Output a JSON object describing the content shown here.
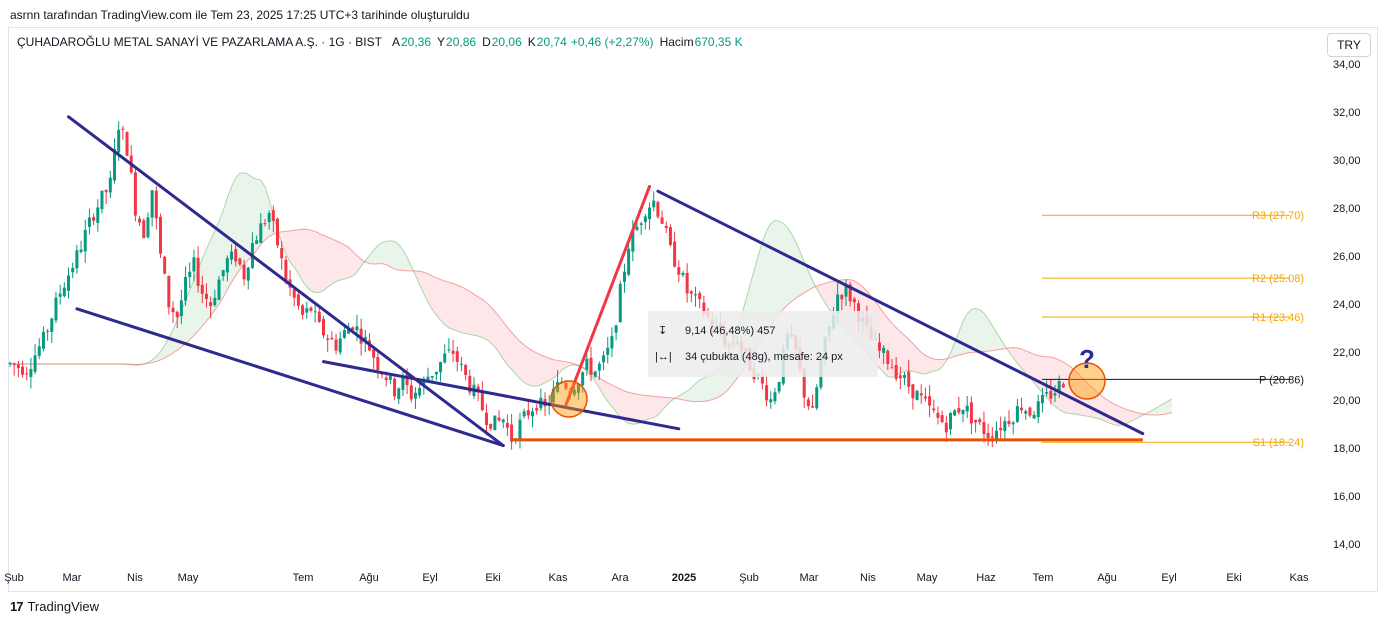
{
  "header": {
    "caption": "asrnn tarafından TradingView.com ile Tem 23, 2025 17:25 UTC+3 tarihinde oluşturuldu"
  },
  "legend": {
    "symbol": "ÇUHADAROĞLU METAL SANAYİ VE PAZARLAMA A.Ş. · 1G · BIST",
    "open_label": "A",
    "open": "20,36",
    "high_label": "Y",
    "high": "20,86",
    "low_label": "D",
    "low": "20,06",
    "close_label": "K",
    "close": "20,74",
    "change": "+0,46 (+2,27%)",
    "volume_label": "Hacim",
    "volume": "670,35 K",
    "value_color": "#089981"
  },
  "currency_button": "TRY",
  "footer": {
    "brand": "TradingView",
    "mark": "17"
  },
  "measure_tooltip": {
    "line1": "9,14 (46,48%) 457",
    "line2": "34 çubukta (48g), mesafe: 24 px"
  },
  "chart_data": {
    "type": "candlestick",
    "y_axis": {
      "min": 13,
      "max": 35,
      "ticks": [
        "34,00",
        "32,00",
        "30,00",
        "28,00",
        "26,00",
        "24,00",
        "22,00",
        "20,00",
        "18,00",
        "16,00",
        "14,00"
      ],
      "tick_values": [
        34,
        32,
        30,
        28,
        26,
        24,
        22,
        20,
        18,
        16,
        14
      ]
    },
    "x_axis": {
      "ticks": [
        "Şub",
        "Mar",
        "Nis",
        "May",
        "Tem",
        "Ağu",
        "Eyl",
        "Eki",
        "Kas",
        "Ara",
        "2025",
        "Şub",
        "Mar",
        "Nis",
        "May",
        "Haz",
        "Tem",
        "Ağu",
        "Eyl",
        "Eki",
        "Kas"
      ],
      "bold_tick": "2025"
    },
    "pivots": [
      {
        "label": "R3 (27.70)",
        "value": 27.7,
        "color": "#f7a600"
      },
      {
        "label": "R2 (25.08)",
        "value": 25.08,
        "color": "#f7a600"
      },
      {
        "label": "R1 (23.46)",
        "value": 23.46,
        "color": "#f7a600"
      },
      {
        "label": "P (20.86)",
        "value": 20.86,
        "color": "#131722"
      },
      {
        "label": "S1 (18.24)",
        "value": 18.24,
        "color": "#f7a600"
      }
    ],
    "price_path": [
      [
        0,
        21.5
      ],
      [
        4,
        21.3
      ],
      [
        8,
        22.5
      ],
      [
        12,
        24.5
      ],
      [
        16,
        26
      ],
      [
        20,
        27.8
      ],
      [
        24,
        29
      ],
      [
        26,
        31.5
      ],
      [
        28,
        30.5
      ],
      [
        30,
        28
      ],
      [
        32,
        27
      ],
      [
        34,
        28.8
      ],
      [
        36,
        26
      ],
      [
        38,
        24
      ],
      [
        40,
        23.5
      ],
      [
        42,
        24.8
      ],
      [
        44,
        25.6
      ],
      [
        46,
        24.5
      ],
      [
        48,
        24
      ],
      [
        50,
        25
      ],
      [
        52,
        25.8
      ],
      [
        54,
        26
      ],
      [
        56,
        25.2
      ],
      [
        58,
        26.5
      ],
      [
        60,
        27.2
      ],
      [
        62,
        27.8
      ],
      [
        64,
        26.5
      ],
      [
        66,
        25
      ],
      [
        68,
        24.2
      ],
      [
        70,
        23.5
      ],
      [
        72,
        23.8
      ],
      [
        74,
        23
      ],
      [
        76,
        22.6
      ],
      [
        78,
        22.3
      ],
      [
        80,
        22.8
      ],
      [
        82,
        23.2
      ],
      [
        84,
        22.7
      ],
      [
        86,
        22.2
      ],
      [
        88,
        21.5
      ],
      [
        90,
        21
      ],
      [
        92,
        20.4
      ],
      [
        94,
        20.8
      ],
      [
        96,
        20.2
      ],
      [
        98,
        20.5
      ],
      [
        100,
        21
      ],
      [
        102,
        21.3
      ],
      [
        104,
        21.8
      ],
      [
        106,
        22
      ],
      [
        108,
        21.3
      ],
      [
        110,
        20.6
      ],
      [
        112,
        20
      ],
      [
        114,
        19.3
      ],
      [
        116,
        19
      ],
      [
        118,
        19.2
      ],
      [
        120,
        18.4
      ],
      [
        122,
        19
      ],
      [
        124,
        19.5
      ],
      [
        126,
        19.9
      ],
      [
        128,
        19.6
      ],
      [
        130,
        20.3
      ],
      [
        132,
        20.8
      ],
      [
        134,
        20.5
      ],
      [
        136,
        20.9
      ],
      [
        138,
        21.4
      ],
      [
        140,
        21.2
      ],
      [
        142,
        21.6
      ],
      [
        144,
        22.4
      ],
      [
        146,
        24.5
      ],
      [
        148,
        26.5
      ],
      [
        150,
        27.2
      ],
      [
        152,
        28
      ],
      [
        154,
        28.3
      ],
      [
        156,
        27.5
      ],
      [
        158,
        26.2
      ],
      [
        160,
        25.5
      ],
      [
        162,
        24.5
      ],
      [
        164,
        24.1
      ],
      [
        166,
        23.7
      ],
      [
        168,
        23.1
      ],
      [
        170,
        22.8
      ],
      [
        172,
        22.2
      ],
      [
        174,
        22.6
      ],
      [
        176,
        21.7
      ],
      [
        178,
        21.2
      ],
      [
        180,
        20.6
      ],
      [
        182,
        20
      ],
      [
        184,
        21
      ],
      [
        186,
        22.6
      ],
      [
        188,
        22
      ],
      [
        190,
        20.3
      ],
      [
        192,
        19.4
      ],
      [
        194,
        21.6
      ],
      [
        196,
        23
      ],
      [
        198,
        24.4
      ],
      [
        200,
        24.6
      ],
      [
        202,
        24
      ],
      [
        204,
        23.2
      ],
      [
        206,
        22.5
      ],
      [
        208,
        22
      ],
      [
        210,
        21.7
      ],
      [
        212,
        21.2
      ],
      [
        214,
        20.8
      ],
      [
        216,
        20.4
      ],
      [
        218,
        20
      ],
      [
        220,
        19.6
      ],
      [
        222,
        19.2
      ],
      [
        224,
        19
      ],
      [
        226,
        19.5
      ],
      [
        228,
        19.8
      ],
      [
        230,
        19.3
      ],
      [
        232,
        18.9
      ],
      [
        234,
        18.6
      ],
      [
        236,
        18.8
      ],
      [
        238,
        19.1
      ],
      [
        240,
        19.4
      ],
      [
        242,
        19.8
      ],
      [
        244,
        19.5
      ],
      [
        246,
        19.7
      ],
      [
        248,
        20.1
      ],
      [
        250,
        20.4
      ],
      [
        252,
        20.8
      ]
    ],
    "trendlines": [
      {
        "from": [
          "bar",
          14,
          31.8
        ],
        "to": [
          "bar",
          118,
          18.1
        ],
        "color": "#2e2a8f"
      },
      {
        "from": [
          "bar",
          16,
          23.8
        ],
        "to": [
          "bar",
          118,
          18.1
        ],
        "color": "#2e2a8f"
      },
      {
        "from": [
          "bar",
          75,
          21.6
        ],
        "to": [
          "bar",
          160,
          18.8
        ],
        "color": "#2e2a8f"
      },
      {
        "from": [
          "bar",
          155,
          28.7
        ],
        "to": [
          "bar",
          271,
          18.6
        ],
        "color": "#2e2a8f"
      },
      {
        "from": [
          "bar",
          133,
          19.8
        ],
        "to": [
          "bar",
          153,
          28.9
        ],
        "color": "#f23645"
      }
    ],
    "support": {
      "value": 18.34,
      "color": "#e65100"
    },
    "ichimoku_cloud": true,
    "annotations": {
      "circles": 2,
      "question_mark": "?"
    },
    "grid": false
  }
}
